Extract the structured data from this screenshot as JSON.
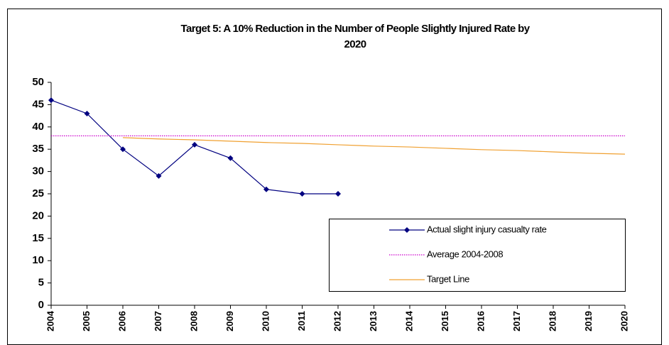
{
  "chart_data": {
    "type": "line",
    "title": [
      "Target 5: A 10% Reduction in the Number of People Slightly Injured Rate by",
      "2020"
    ],
    "categories": [
      "2004",
      "2005",
      "2006",
      "2007",
      "2008",
      "2009",
      "2010",
      "2011",
      "2012",
      "2013",
      "2014",
      "2015",
      "2016",
      "2017",
      "2018",
      "2019",
      "2020"
    ],
    "series": [
      {
        "name": "Actual slight injury casualty rate",
        "color": "#000080",
        "marker": "diamond",
        "dash": "solid",
        "values": [
          46,
          43,
          35,
          29,
          36,
          33,
          26,
          25,
          25,
          null,
          null,
          null,
          null,
          null,
          null,
          null,
          null
        ]
      },
      {
        "name": "Average 2004-2008",
        "color": "#cc00cc",
        "marker": "none",
        "dash": "dotted",
        "values": [
          38,
          38,
          38,
          38,
          38,
          38,
          38,
          38,
          38,
          38,
          38,
          38,
          38,
          38,
          38,
          38,
          38
        ]
      },
      {
        "name": "Target Line",
        "color": "#f0a030",
        "marker": "none",
        "dash": "solid",
        "values": [
          null,
          null,
          37.6,
          37.3,
          37.1,
          36.8,
          36.5,
          36.3,
          36.0,
          35.7,
          35.5,
          35.2,
          34.9,
          34.7,
          34.4,
          34.1,
          33.9
        ]
      }
    ],
    "ylim": [
      0,
      50
    ],
    "yticks": [
      0,
      5,
      10,
      15,
      20,
      25,
      30,
      35,
      40,
      45,
      50
    ],
    "grid": false,
    "legend": "lower right"
  }
}
